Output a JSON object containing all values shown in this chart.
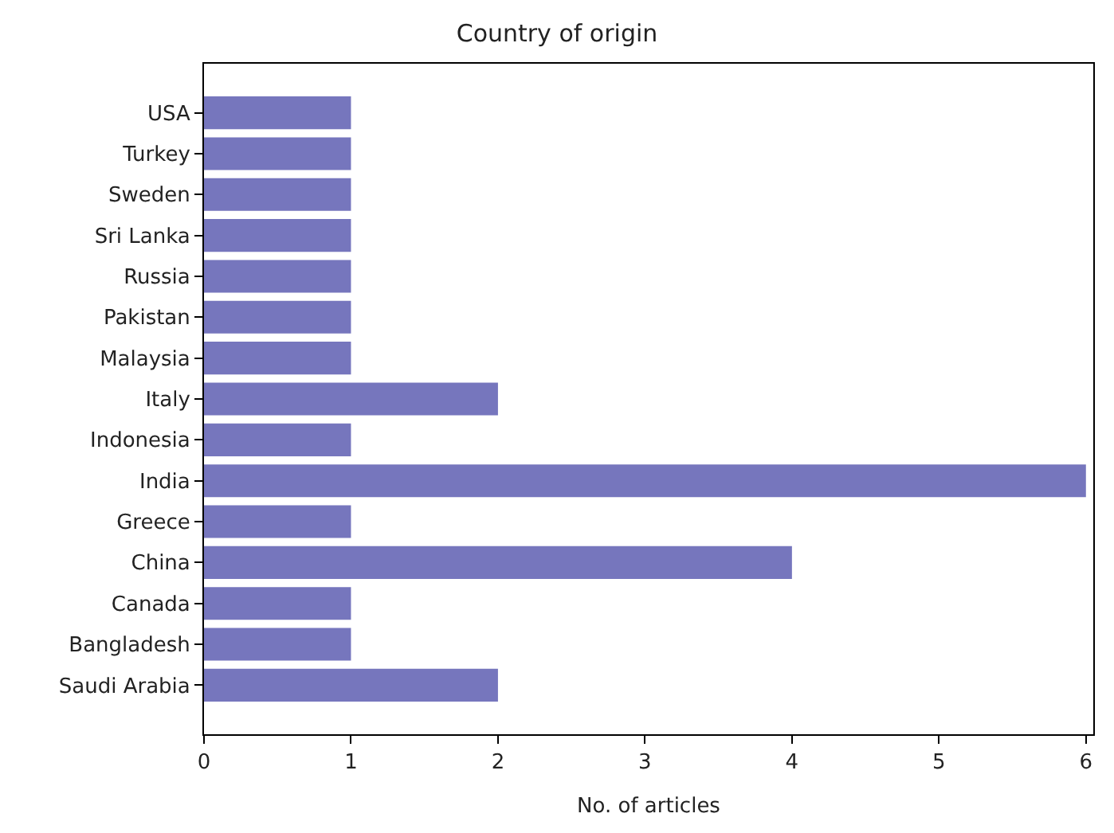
{
  "chart_data": {
    "type": "bar",
    "orientation": "horizontal",
    "title": "Country of origin",
    "xlabel": "No. of articles",
    "categories": [
      "USA",
      "Turkey",
      "Sweden",
      "Sri Lanka",
      "Russia",
      "Pakistan",
      "Malaysia",
      "Italy",
      "Indonesia",
      "India",
      "Greece",
      "China",
      "Canada",
      "Bangladesh",
      "Saudi Arabia"
    ],
    "values": [
      1,
      1,
      1,
      1,
      1,
      1,
      1,
      2,
      1,
      6,
      1,
      4,
      1,
      1,
      2
    ],
    "color": "#7676bd",
    "xlim": [
      0,
      6.05
    ],
    "xticks": [
      0,
      1,
      2,
      3,
      4,
      5,
      6
    ],
    "legend": false
  }
}
